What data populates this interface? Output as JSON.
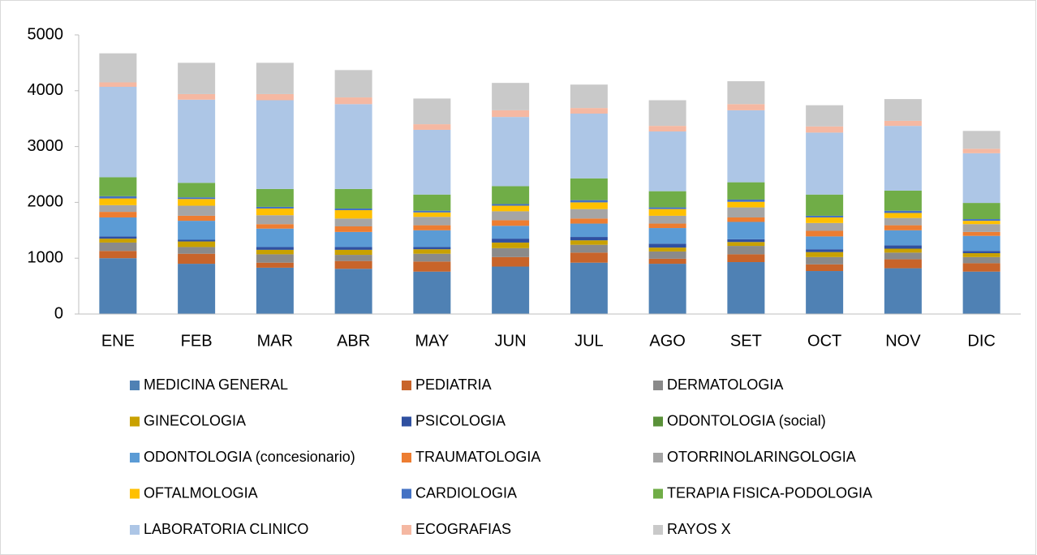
{
  "chart_data": {
    "type": "stacked_bar",
    "categories": [
      "ENE",
      "FEB",
      "MAR",
      "ABR",
      "MAY",
      "JUN",
      "JUL",
      "AGO",
      "SET",
      "OCT",
      "NOV",
      "DIC"
    ],
    "ylim": [
      0,
      5000
    ],
    "yticks": [
      0,
      1000,
      2000,
      3000,
      4000,
      5000
    ],
    "grid": false,
    "legend": "bottom",
    "series": [
      {
        "name": "MEDICINA GENERAL",
        "color": "#4f81b4",
        "values": [
          1000,
          900,
          830,
          810,
          760,
          850,
          920,
          900,
          930,
          770,
          820,
          760
        ]
      },
      {
        "name": "PEDIATRIA",
        "color": "#c8642a",
        "values": [
          130,
          180,
          90,
          140,
          180,
          170,
          180,
          90,
          140,
          120,
          160,
          150
        ]
      },
      {
        "name": "DERMATOLOGIA",
        "color": "#8a8a8a",
        "values": [
          150,
          120,
          150,
          110,
          140,
          160,
          140,
          130,
          150,
          130,
          120,
          110
        ]
      },
      {
        "name": "GINECOLOGIA",
        "color": "#c9a100",
        "values": [
          70,
          100,
          80,
          90,
          80,
          100,
          80,
          70,
          70,
          90,
          70,
          70
        ]
      },
      {
        "name": "PSICOLOGIA",
        "color": "#2f50a0",
        "values": [
          40,
          30,
          50,
          50,
          40,
          70,
          60,
          70,
          50,
          50,
          60,
          40
        ]
      },
      {
        "name": "ODONTOLOGIA (social)",
        "color": "#5a9139",
        "values": [
          0,
          0,
          0,
          0,
          0,
          0,
          0,
          0,
          0,
          0,
          0,
          0
        ]
      },
      {
        "name": "ODONTOLOGIA (concesionario)",
        "color": "#5b9bd5",
        "values": [
          340,
          340,
          330,
          270,
          300,
          230,
          240,
          280,
          310,
          230,
          270,
          270
        ]
      },
      {
        "name": "TRAUMATOLOGIA",
        "color": "#ed7d31",
        "values": [
          100,
          90,
          80,
          100,
          90,
          100,
          90,
          80,
          80,
          100,
          90,
          70
        ]
      },
      {
        "name": "OTORRINOLARINGOLOGIA",
        "color": "#a5a5a5",
        "values": [
          120,
          180,
          160,
          140,
          150,
          160,
          170,
          140,
          180,
          140,
          130,
          140
        ]
      },
      {
        "name": "OFTALMOLOGIA",
        "color": "#ffc000",
        "values": [
          120,
          120,
          120,
          150,
          80,
          100,
          120,
          120,
          100,
          100,
          90,
          60
        ]
      },
      {
        "name": "CARDIOLOGIA",
        "color": "#4472c4",
        "values": [
          40,
          30,
          30,
          30,
          30,
          30,
          40,
          30,
          40,
          30,
          40,
          30
        ]
      },
      {
        "name": "TERAPIA FISICA-PODOLOGIA",
        "color": "#70ad47",
        "values": [
          340,
          260,
          320,
          350,
          290,
          320,
          390,
          290,
          310,
          380,
          360,
          290
        ]
      },
      {
        "name": "LABORATORIA CLINICO",
        "color": "#adc6e6",
        "values": [
          1620,
          1490,
          1590,
          1520,
          1160,
          1240,
          1160,
          1070,
          1290,
          1110,
          1160,
          890
        ]
      },
      {
        "name": "ECOGRAFIAS",
        "color": "#f5b8a2",
        "values": [
          80,
          100,
          110,
          120,
          100,
          120,
          100,
          100,
          110,
          110,
          90,
          80
        ]
      },
      {
        "name": "RAYOS X",
        "color": "#c9c9c9",
        "values": [
          520,
          560,
          560,
          490,
          460,
          490,
          420,
          460,
          410,
          380,
          390,
          320
        ]
      }
    ]
  }
}
